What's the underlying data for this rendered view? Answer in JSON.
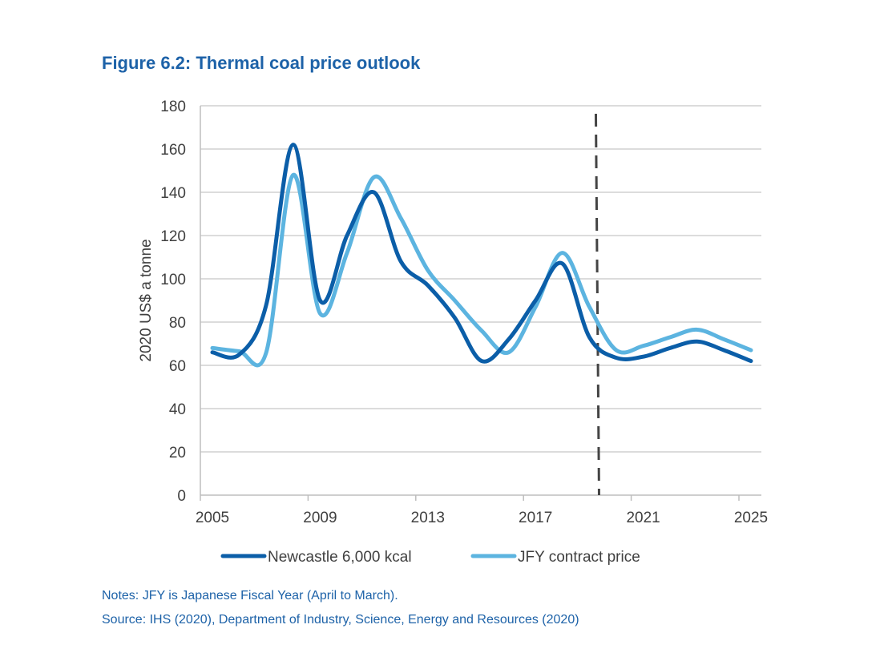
{
  "title": "Figure 6.2: Thermal coal price outlook",
  "notes": "Notes: JFY is Japanese Fiscal Year (April to March).",
  "source": "Source: IHS (2020), Department of Industry, Science, Energy and Resources (2020)",
  "chart_data": {
    "type": "line",
    "title": "Figure 6.2: Thermal coal price outlook",
    "ylabel": "2020 US$ a tonne",
    "xlabel": "",
    "ylim": [
      0,
      180
    ],
    "yticks": [
      0,
      20,
      40,
      60,
      80,
      100,
      120,
      140,
      160,
      180
    ],
    "xticks": [
      "2005",
      "2009",
      "2013",
      "2017",
      "2021",
      "2025"
    ],
    "grid": "horizontal",
    "legend": "bottom",
    "forecast_marker_x": 2019.3,
    "x": [
      2005,
      2006,
      2007,
      2008,
      2009,
      2010,
      2011,
      2012,
      2013,
      2014,
      2015,
      2016,
      2017,
      2018,
      2019,
      2020,
      2021,
      2022,
      2023,
      2024,
      2025
    ],
    "series": [
      {
        "name": "Newcastle 6,000 kcal",
        "color": "#0b5ea8",
        "values": [
          66,
          65,
          88,
          162,
          90,
          120,
          140,
          108,
          97,
          82,
          62,
          72,
          90,
          107,
          73,
          63.5,
          64,
          68,
          71,
          67,
          62
        ]
      },
      {
        "name": "JFY contract price",
        "color": "#5cb4e0",
        "values": [
          68,
          66.5,
          66,
          148,
          84,
          112,
          147,
          128,
          104,
          90,
          76,
          66,
          87,
          112,
          87,
          67,
          69,
          73,
          76.5,
          72,
          67
        ]
      }
    ]
  }
}
